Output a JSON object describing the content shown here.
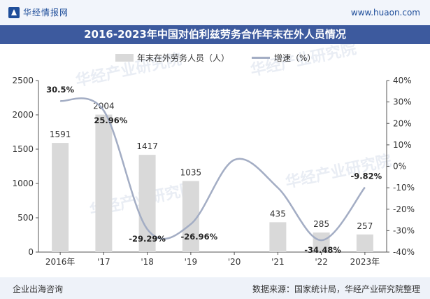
{
  "header": {
    "logo_text": "华经情报网",
    "site_url": "www.huaon.com"
  },
  "watermark_text": "华经产业研究院",
  "footer": {
    "left": "企业出海咨询",
    "right": "数据来源：国家统计局，华经产业研究院整理"
  },
  "colors": {
    "bar": "#d9d9d9",
    "line": "#a3adc4",
    "title_bg": "#3d5a9e",
    "axis_text": "#333333"
  },
  "chart_data": {
    "type": "bar",
    "title": "2016-2023年中国对伯利兹劳务合作年末在外人员情况",
    "categories": [
      "2016年",
      "'17",
      "'18",
      "'19",
      "'20",
      "'21",
      "'22",
      "2023年"
    ],
    "legend": [
      "年末在外劳务人员（人）",
      "增速（%）"
    ],
    "legend_position": "top-center",
    "series": [
      {
        "name": "年末在外劳务人员（人）",
        "type": "bar",
        "axis": "left",
        "values": [
          1591,
          2004,
          1417,
          1035,
          null,
          435,
          285,
          257
        ],
        "labels": [
          "1591",
          "2004",
          "1417",
          "1035",
          "",
          "435",
          "285",
          "257"
        ]
      },
      {
        "name": "增速（%）",
        "type": "line",
        "axis": "right",
        "values": [
          30.5,
          25.96,
          -29.29,
          -26.96,
          3.0,
          -10.0,
          -34.48,
          -9.82
        ],
        "labels": [
          "30.5%",
          "25.96%",
          "-29.29%",
          "-26.96%",
          "",
          "",
          "-34.48%",
          "-9.82%"
        ]
      }
    ],
    "y_left": {
      "min": 0,
      "max": 2500,
      "ticks": [
        "0",
        "500",
        "1000",
        "1500",
        "2000",
        "2500"
      ]
    },
    "y_right": {
      "min": -40,
      "max": 40,
      "ticks": [
        "-40%",
        "-30%",
        "-20%",
        "-10%",
        "0%",
        "10%",
        "20%",
        "30%",
        "40%"
      ]
    },
    "grid": false
  }
}
